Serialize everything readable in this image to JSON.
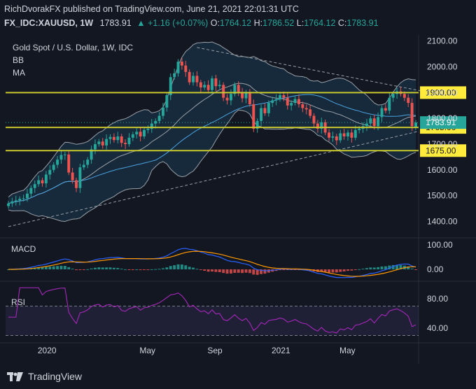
{
  "publish_line": "RichDvorakFX published on TradingView.com, June 21, 2021 22:01:31 UTC",
  "ticker": {
    "symbol": "FX_IDC:XAUUSD, 1W",
    "price": "1783.91",
    "change": "▲ +1.16 (+0.07%)",
    "o_label": "O:",
    "o": "1764.12",
    "h_label": "H:",
    "h": "1786.52",
    "l_label": "L:",
    "l": "1764.12",
    "c_label": "C:",
    "c": "1783.91"
  },
  "legend": {
    "title": "Gold Spot / U.S. Dollar, 1W, IDC",
    "bb": "BB",
    "ma": "MA"
  },
  "colors": {
    "up": "#26a69a",
    "down": "#ef5350",
    "level": "#c9c92e",
    "bb": "#9aa0a6",
    "ma": "#4aa3df",
    "macd": "#2962ff",
    "signal": "#ff9800",
    "rsi": "#9c27b0",
    "bg": "#131722"
  },
  "chart_data": {
    "type": "candlestick",
    "title": "Gold Spot / U.S. Dollar, 1W, IDC",
    "price_axis": {
      "ticks": [
        "2100.00",
        "2000.00",
        "1900.00",
        "1800.00",
        "1700.00",
        "1600.00",
        "1500.00",
        "1400.00"
      ],
      "ylim": [
        1350,
        2110
      ]
    },
    "x_labels": [
      "2020",
      "May",
      "Sep",
      "2021",
      "May"
    ],
    "last_price": "1783.91",
    "levels": [
      {
        "label": "1900.00",
        "value": 1900
      },
      {
        "label": "1765.00",
        "value": 1765
      },
      {
        "label": "1675.00",
        "value": 1675
      }
    ],
    "macd": {
      "label": "MACD",
      "ticks": [
        "100.00",
        "0.00"
      ]
    },
    "rsi": {
      "label": "RSI",
      "ticks": [
        "80.00",
        "40.00"
      ],
      "bands": [
        70,
        30
      ]
    },
    "close": [
      1470,
      1478,
      1482,
      1488,
      1490,
      1508,
      1530,
      1545,
      1560,
      1548,
      1582,
      1600,
      1620,
      1640,
      1658,
      1660,
      1590,
      1560,
      1530,
      1610,
      1620,
      1640,
      1680,
      1700,
      1710,
      1695,
      1720,
      1728,
      1716,
      1730,
      1705,
      1700,
      1725,
      1738,
      1748,
      1730,
      1755,
      1760,
      1780,
      1790,
      1810,
      1842,
      1890,
      1960,
      1975,
      2020,
      2005,
      1980,
      1940,
      1965,
      1940,
      1920,
      1930,
      1910,
      1955,
      1925,
      1930,
      1880,
      1870,
      1895,
      1930,
      1900,
      1878,
      1900,
      1855,
      1760,
      1790,
      1840,
      1820,
      1860,
      1870,
      1875,
      1890,
      1880,
      1850,
      1860,
      1875,
      1855,
      1840,
      1835,
      1810,
      1780,
      1760,
      1785,
      1745,
      1725,
      1730,
      1715,
      1742,
      1730,
      1745,
      1725,
      1755,
      1760,
      1770,
      1780,
      1800,
      1770,
      1805,
      1840,
      1830,
      1880,
      1895,
      1905,
      1895,
      1880,
      1860,
      1770,
      1783.91
    ],
    "open": [
      1460,
      1470,
      1478,
      1482,
      1488,
      1490,
      1508,
      1530,
      1545,
      1560,
      1548,
      1582,
      1600,
      1620,
      1640,
      1658,
      1660,
      1590,
      1560,
      1530,
      1610,
      1620,
      1640,
      1680,
      1700,
      1710,
      1695,
      1720,
      1728,
      1716,
      1730,
      1705,
      1700,
      1725,
      1738,
      1748,
      1730,
      1755,
      1760,
      1780,
      1790,
      1810,
      1842,
      1890,
      1960,
      1975,
      2020,
      2005,
      1980,
      1940,
      1965,
      1940,
      1920,
      1930,
      1910,
      1955,
      1925,
      1930,
      1880,
      1870,
      1895,
      1930,
      1900,
      1878,
      1900,
      1855,
      1760,
      1790,
      1840,
      1820,
      1860,
      1870,
      1875,
      1890,
      1880,
      1850,
      1860,
      1875,
      1855,
      1840,
      1835,
      1810,
      1780,
      1760,
      1785,
      1745,
      1725,
      1730,
      1715,
      1742,
      1730,
      1745,
      1725,
      1755,
      1760,
      1770,
      1780,
      1800,
      1770,
      1805,
      1840,
      1830,
      1880,
      1895,
      1905,
      1895,
      1880,
      1860,
      1764.12
    ]
  }
}
